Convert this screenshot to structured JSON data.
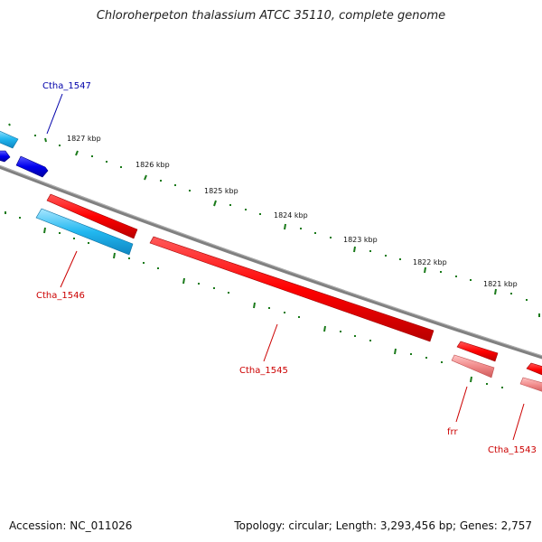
{
  "title": "Chloroherpeton thalassium ATCC 35110, complete genome",
  "footer": {
    "accession": "Accession: NC_011026",
    "summary": "Topology: circular; Length: 3,293,456 bp; Genes: 2,757"
  },
  "kbp_labels": [
    "1827 kbp",
    "1826 kbp",
    "1825 kbp",
    "1824 kbp",
    "1823 kbp",
    "1822 kbp",
    "1821 kbp"
  ],
  "genes": [
    {
      "name": "Ctha_1547",
      "color": "#0000aa"
    },
    {
      "name": "Ctha_1546",
      "color": "#cc0000"
    },
    {
      "name": "Ctha_1545",
      "color": "#cc0000"
    },
    {
      "name": "frr",
      "color": "#cc0000"
    },
    {
      "name": "Ctha_1543",
      "color": "#cc0000"
    }
  ],
  "colors": {
    "forward_strand": "#ff0000",
    "forward_light": "#f08080",
    "reverse_strand": "#0000ee",
    "reverse_light": "#22b8f0",
    "backbone": "#808080",
    "tick": "#1a7a1a"
  }
}
